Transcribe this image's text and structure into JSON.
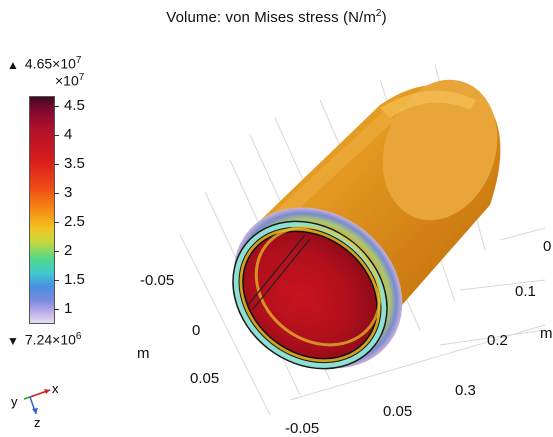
{
  "title": {
    "prefix": "Volume: von Mises stress (N/m",
    "sup": "2",
    "suffix": ")"
  },
  "legend": {
    "max_triangle": "▲",
    "max_base": "4.65×10",
    "max_exp": "7",
    "scale_base": "×10",
    "scale_exp": "7",
    "ticks": [
      "4.5",
      "4",
      "3.5",
      "3",
      "2.5",
      "2",
      "1.5",
      "1"
    ],
    "min_triangle": "▼",
    "min_base": "7.24×10",
    "min_exp": "6"
  },
  "axes": {
    "left_labels": [
      "-0.05",
      "0",
      "0.05"
    ],
    "left_unit": "m",
    "bottom_labels": [
      "-0.05",
      "0.05"
    ],
    "right_labels": [
      "0",
      "0.1",
      "0.2",
      "0.3"
    ],
    "right_unit": "m"
  },
  "triad": {
    "x": "x",
    "y": "y",
    "z": "z"
  },
  "colors": {
    "cylinder_outer": "#d9901a",
    "cylinder_highlight": "#f2b64a",
    "inner_wall": "#b8101e",
    "ring": "#8fe0d4"
  }
}
